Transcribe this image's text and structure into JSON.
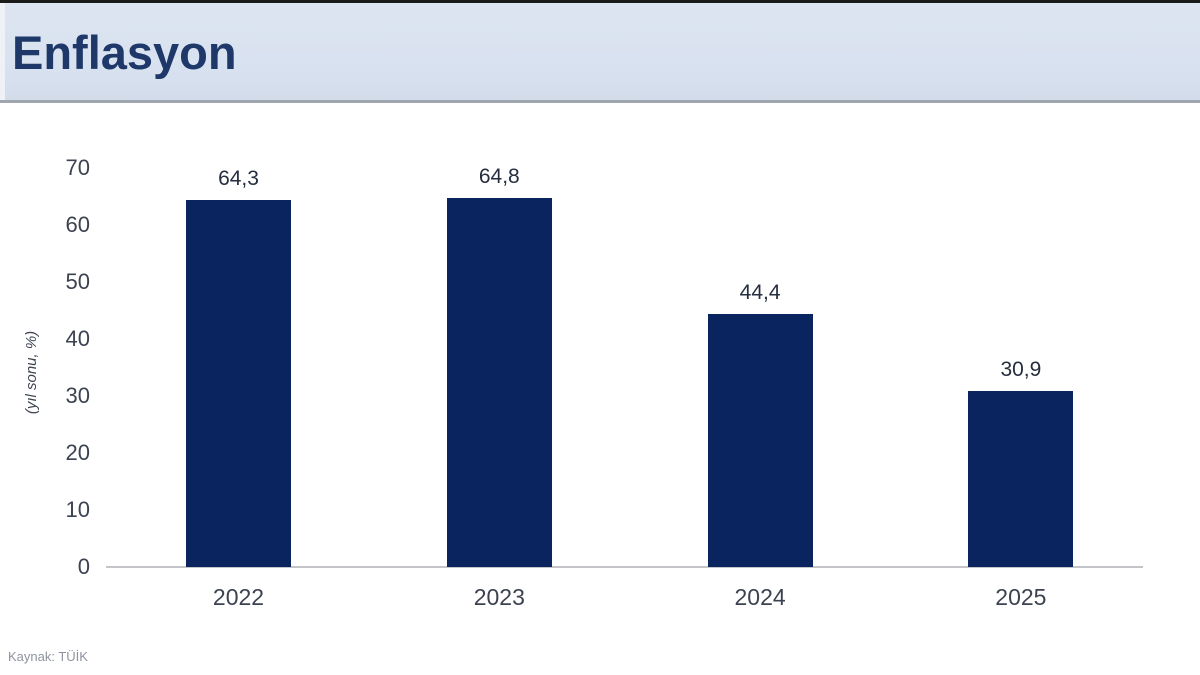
{
  "header": {
    "title": "Enflasyon"
  },
  "footer": {
    "source": "Kaynak: TÜİK"
  },
  "chart_data": {
    "type": "bar",
    "title": "Enflasyon",
    "categories": [
      "2022",
      "2023",
      "2024",
      "2025"
    ],
    "values": [
      64.3,
      64.8,
      44.4,
      30.9
    ],
    "value_labels": [
      "64,3",
      "64,8",
      "44,4",
      "30,9"
    ],
    "xlabel": "",
    "ylabel": "(yıl sonu, %)",
    "yticks": [
      0,
      10,
      20,
      30,
      40,
      50,
      60,
      70
    ],
    "ylim": [
      0,
      70
    ],
    "grid": false,
    "legend": false,
    "bar_color": "#0a2460",
    "source": "Kaynak: TÜİK"
  }
}
